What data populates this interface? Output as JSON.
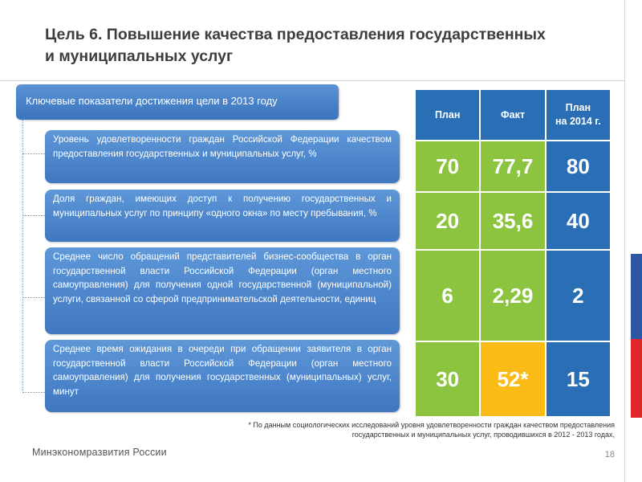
{
  "slide": {
    "title_line1": "Цель 6. Повышение качества предоставления государственных",
    "title_line2": "и муниципальных услуг",
    "header": "Ключевые показатели достижения цели в 2013 году",
    "indicators": [
      "Уровень удовлетворенности граждан Российской Федерации качеством предоставления государственных и муниципальных услуг, %",
      "Доля граждан, имеющих доступ к получению государственных и муниципальных услуг по принципу «одного окна» по месту пребывания, %",
      "Среднее число обращений представителей бизнес-сообщества в орган государственной власти Российской Федерации (орган местного самоуправления) для получения одной государственной (муниципальной) услуги, связанной со сферой предпринимательской деятельности, единиц",
      "Среднее время ожидания в очереди при обращении заявителя в орган государственной власти Российской Федерации (орган местного самоуправления) для получения государственных (муниципальных) услуг, минут"
    ],
    "footnote": "* По данным социологических исследований уровня удовлетворенности граждан качеством предоставления государственных и муниципальных услуг, проводившихся в 2012 - 2013 годах,",
    "footer_logo": "Минэкономразвития России",
    "page_number": "18"
  },
  "table": {
    "headers": {
      "plan": "План",
      "fact": "Факт",
      "plan2014_line1": "План",
      "plan2014_line2": "на 2014 г."
    },
    "rows": [
      {
        "plan": "70",
        "fact": "77,7",
        "plan2014": "80"
      },
      {
        "plan": "20",
        "fact": "35,6",
        "plan2014": "40"
      },
      {
        "plan": "6",
        "fact": "2,29",
        "plan2014": "2"
      },
      {
        "plan": "30",
        "fact": "52*",
        "plan2014": "15"
      }
    ]
  },
  "colors": {
    "header_blue": "#2a6eb6",
    "cell_green": "#8cc43f",
    "cell_highlight": "#fbbb16",
    "item_blue": "#4a84c9",
    "stripe_blue": "#2c57a4",
    "stripe_red": "#e0252b"
  }
}
